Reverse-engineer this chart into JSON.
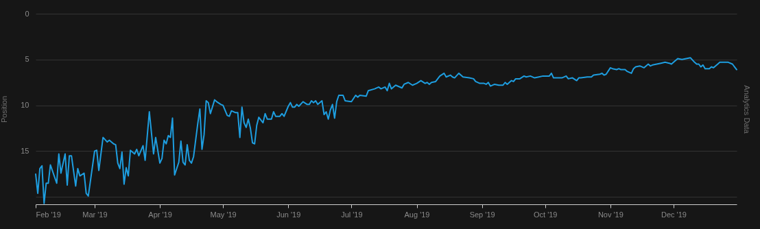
{
  "chart_data": {
    "type": "line",
    "ylabel": "Position",
    "y2label": "Analytics Data",
    "xlim": [
      "2019-02-01",
      "2019-12-31"
    ],
    "xticks": [
      {
        "value": "2019-02-01",
        "label": "Feb '19"
      },
      {
        "value": "2019-03-01",
        "label": "Mar '19"
      },
      {
        "value": "2019-04-01",
        "label": "Apr '19"
      },
      {
        "value": "2019-05-01",
        "label": "May '19"
      },
      {
        "value": "2019-06-01",
        "label": "Jun '19"
      },
      {
        "value": "2019-07-01",
        "label": "Jul '19"
      },
      {
        "value": "2019-08-01",
        "label": "Aug '19"
      },
      {
        "value": "2019-09-01",
        "label": "Sep '19"
      },
      {
        "value": "2019-10-01",
        "label": "Oct '19"
      },
      {
        "value": "2019-11-01",
        "label": "Nov '19"
      },
      {
        "value": "2019-12-01",
        "label": "Dec '19"
      }
    ],
    "ylim": [
      20.8,
      0
    ],
    "yticks": [
      0,
      5,
      10,
      15,
      {
        "value": 20,
        "label": null
      }
    ],
    "grid": "y",
    "marker": "none",
    "line_style": "solid",
    "x": [
      "2019-02-01",
      "2019-02-02",
      "2019-02-03",
      "2019-02-04",
      "2019-02-05",
      "2019-02-06",
      "2019-02-07",
      "2019-02-08",
      "2019-02-11",
      "2019-02-12",
      "2019-02-13",
      "2019-02-15",
      "2019-02-16",
      "2019-02-17",
      "2019-02-18",
      "2019-02-20",
      "2019-02-21",
      "2019-02-22",
      "2019-02-24",
      "2019-02-25",
      "2019-02-26",
      "2019-03-01",
      "2019-03-02",
      "2019-03-03",
      "2019-03-05",
      "2019-03-07",
      "2019-03-08",
      "2019-03-10",
      "2019-03-11",
      "2019-03-12",
      "2019-03-13",
      "2019-03-14",
      "2019-03-15",
      "2019-03-16",
      "2019-03-17",
      "2019-03-18",
      "2019-03-20",
      "2019-03-21",
      "2019-03-22",
      "2019-03-24",
      "2019-03-25",
      "2019-03-27",
      "2019-03-29",
      "2019-03-30",
      "2019-04-01",
      "2019-04-02",
      "2019-04-03",
      "2019-04-04",
      "2019-04-05",
      "2019-04-06",
      "2019-04-07",
      "2019-04-08",
      "2019-04-10",
      "2019-04-11",
      "2019-04-12",
      "2019-04-13",
      "2019-04-14",
      "2019-04-15",
      "2019-04-16",
      "2019-04-17",
      "2019-04-19",
      "2019-04-20",
      "2019-04-21",
      "2019-04-22",
      "2019-04-23",
      "2019-04-24",
      "2019-04-25",
      "2019-04-27",
      "2019-04-28",
      "2019-04-30",
      "2019-05-01",
      "2019-05-03",
      "2019-05-04",
      "2019-05-05",
      "2019-05-07",
      "2019-05-08",
      "2019-05-09",
      "2019-05-10",
      "2019-05-11",
      "2019-05-12",
      "2019-05-13",
      "2019-05-14",
      "2019-05-15",
      "2019-05-16",
      "2019-05-17",
      "2019-05-18",
      "2019-05-19",
      "2019-05-20",
      "2019-05-21",
      "2019-05-22",
      "2019-05-24",
      "2019-05-25",
      "2019-05-26",
      "2019-05-28",
      "2019-05-29",
      "2019-05-30",
      "2019-06-01",
      "2019-06-02",
      "2019-06-03",
      "2019-06-04",
      "2019-06-05",
      "2019-06-06",
      "2019-06-08",
      "2019-06-10",
      "2019-06-11",
      "2019-06-12",
      "2019-06-13",
      "2019-06-14",
      "2019-06-15",
      "2019-06-17",
      "2019-06-18",
      "2019-06-19",
      "2019-06-20",
      "2019-06-21",
      "2019-06-22",
      "2019-06-23",
      "2019-06-24",
      "2019-06-25",
      "2019-06-27",
      "2019-06-28",
      "2019-07-01",
      "2019-07-03",
      "2019-07-04",
      "2019-07-05",
      "2019-07-08",
      "2019-07-09",
      "2019-07-12",
      "2019-07-14",
      "2019-07-15",
      "2019-07-17",
      "2019-07-18",
      "2019-07-19",
      "2019-07-20",
      "2019-07-22",
      "2019-07-25",
      "2019-07-26",
      "2019-07-28",
      "2019-07-30",
      "2019-08-01",
      "2019-08-03",
      "2019-08-05",
      "2019-08-06",
      "2019-08-07",
      "2019-08-08",
      "2019-08-10",
      "2019-08-12",
      "2019-08-14",
      "2019-08-15",
      "2019-08-17",
      "2019-08-18",
      "2019-08-19",
      "2019-08-21",
      "2019-08-23",
      "2019-08-26",
      "2019-08-28",
      "2019-08-29",
      "2019-08-31",
      "2019-09-02",
      "2019-09-03",
      "2019-09-04",
      "2019-09-05",
      "2019-09-07",
      "2019-09-09",
      "2019-09-11",
      "2019-09-12",
      "2019-09-13",
      "2019-09-15",
      "2019-09-16",
      "2019-09-17",
      "2019-09-19",
      "2019-09-21",
      "2019-09-22",
      "2019-09-24",
      "2019-09-26",
      "2019-09-28",
      "2019-09-30",
      "2019-10-03",
      "2019-10-04",
      "2019-10-05",
      "2019-10-08",
      "2019-10-09",
      "2019-10-11",
      "2019-10-12",
      "2019-10-14",
      "2019-10-16",
      "2019-10-17",
      "2019-10-18",
      "2019-10-21",
      "2019-10-23",
      "2019-10-24",
      "2019-10-27",
      "2019-10-28",
      "2019-10-29",
      "2019-10-30",
      "2019-11-01",
      "2019-11-02",
      "2019-11-04",
      "2019-11-05",
      "2019-11-06",
      "2019-11-08",
      "2019-11-09",
      "2019-11-11",
      "2019-11-12",
      "2019-11-13",
      "2019-11-15",
      "2019-11-17",
      "2019-11-19",
      "2019-11-20",
      "2019-11-21",
      "2019-11-23",
      "2019-11-25",
      "2019-11-27",
      "2019-11-29",
      "2019-11-30",
      "2019-12-01",
      "2019-12-03",
      "2019-12-05",
      "2019-12-07",
      "2019-12-09",
      "2019-12-11",
      "2019-12-12",
      "2019-12-13",
      "2019-12-14",
      "2019-12-15",
      "2019-12-16",
      "2019-12-18",
      "2019-12-19",
      "2019-12-20",
      "2019-12-22",
      "2019-12-23",
      "2019-12-25",
      "2019-12-27",
      "2019-12-29",
      "2019-12-30",
      "2019-12-31"
    ],
    "series": [
      {
        "color": "#1e9ee0",
        "values": [
          17.5,
          19.6,
          16.9,
          16.6,
          20.7,
          18.5,
          18.5,
          16.5,
          18.5,
          15.3,
          17.4,
          15.3,
          18.7,
          15.5,
          15.5,
          18.8,
          16.9,
          17.7,
          17.4,
          19.6,
          19.9,
          15.0,
          14.9,
          17.1,
          13.5,
          14.0,
          13.8,
          14.2,
          14.3,
          16.3,
          16.9,
          15.1,
          18.6,
          16.8,
          17.7,
          14.9,
          15.3,
          14.8,
          15.5,
          14.4,
          16.0,
          10.7,
          15.3,
          13.5,
          16.3,
          15.8,
          13.8,
          14.2,
          13.3,
          13.5,
          11.4,
          17.6,
          16.2,
          13.9,
          16.2,
          16.5,
          14.3,
          16.0,
          16.3,
          15.6,
          12.0,
          10.4,
          14.8,
          13.2,
          9.5,
          9.7,
          10.9,
          9.4,
          9.6,
          9.9,
          10.0,
          11.1,
          11.2,
          10.6,
          10.8,
          10.8,
          13.5,
          10.2,
          11.9,
          12.4,
          11.5,
          12.5,
          14.1,
          14.2,
          12.2,
          11.3,
          11.6,
          11.9,
          10.9,
          11.5,
          11.5,
          10.7,
          11.2,
          11.2,
          10.9,
          11.2,
          10.1,
          9.7,
          10.2,
          10.2,
          9.9,
          10.1,
          9.6,
          9.9,
          9.9,
          9.5,
          9.7,
          9.5,
          9.9,
          9.5,
          11.0,
          10.7,
          11.5,
          10.5,
          9.9,
          11.4,
          9.6,
          8.9,
          8.9,
          9.5,
          9.6,
          8.9,
          9.1,
          8.9,
          9.0,
          8.4,
          8.2,
          8.0,
          8.2,
          8.0,
          8.4,
          7.6,
          8.2,
          7.8,
          8.1,
          7.7,
          7.5,
          7.8,
          7.6,
          7.3,
          7.6,
          7.5,
          7.7,
          7.5,
          7.4,
          6.8,
          6.5,
          6.9,
          6.7,
          6.9,
          7.0,
          6.5,
          6.9,
          7.0,
          7.1,
          7.4,
          7.6,
          7.6,
          7.7,
          7.5,
          7.9,
          7.7,
          7.8,
          7.8,
          7.5,
          7.7,
          7.3,
          7.4,
          7.1,
          7.1,
          6.8,
          6.9,
          6.8,
          7.0,
          6.9,
          6.8,
          6.8,
          6.5,
          7.0,
          7.0,
          7.0,
          6.8,
          7.1,
          7.0,
          7.3,
          7.0,
          7.0,
          6.9,
          6.9,
          6.7,
          6.6,
          6.5,
          6.7,
          6.6,
          5.9,
          6.0,
          6.1,
          6.0,
          6.1,
          6.1,
          6.3,
          6.5,
          6.0,
          5.8,
          5.7,
          5.9,
          5.5,
          5.7,
          5.6,
          5.5,
          5.4,
          5.3,
          5.4,
          5.5,
          5.3,
          4.9,
          5.0,
          4.9,
          4.8,
          5.3,
          5.5,
          5.5,
          5.8,
          5.6,
          6.0,
          6.0,
          5.8,
          5.9,
          5.5,
          5.3,
          5.3,
          5.3,
          5.5,
          5.8,
          6.1
        ]
      }
    ]
  }
}
